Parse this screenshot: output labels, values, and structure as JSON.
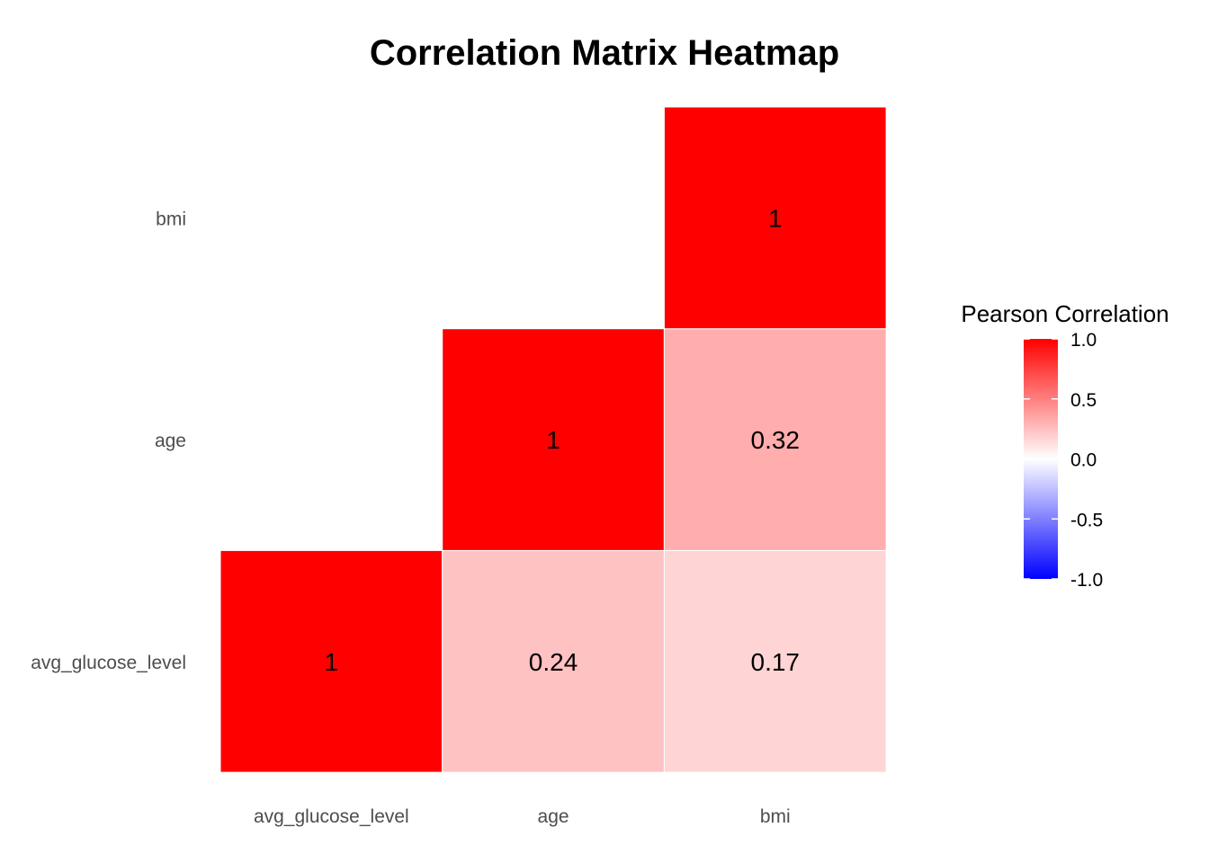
{
  "chart_data": {
    "type": "heatmap",
    "title": "Correlation Matrix Heatmap",
    "variables": [
      "avg_glucose_level",
      "age",
      "bmi"
    ],
    "x_tick_labels": [
      "avg_glucose_level",
      "age",
      "bmi"
    ],
    "y_tick_labels": [
      "avg_glucose_level",
      "age",
      "bmi"
    ],
    "cells": [
      {
        "x": "avg_glucose_level",
        "y": "avg_glucose_level",
        "value": 1,
        "label": "1"
      },
      {
        "x": "age",
        "y": "avg_glucose_level",
        "value": 0.24,
        "label": "0.24"
      },
      {
        "x": "bmi",
        "y": "avg_glucose_level",
        "value": 0.17,
        "label": "0.17"
      },
      {
        "x": "age",
        "y": "age",
        "value": 1,
        "label": "1"
      },
      {
        "x": "bmi",
        "y": "age",
        "value": 0.32,
        "label": "0.32"
      },
      {
        "x": "bmi",
        "y": "bmi",
        "value": 1,
        "label": "1"
      }
    ],
    "legend": {
      "title": "Pearson Correlation",
      "range": [
        -1,
        1
      ],
      "ticks": [
        {
          "value": 1.0,
          "label": "1.0"
        },
        {
          "value": 0.5,
          "label": "0.5"
        },
        {
          "value": 0.0,
          "label": "0.0"
        },
        {
          "value": -0.5,
          "label": "-0.5"
        },
        {
          "value": -1.0,
          "label": "-1.0"
        }
      ],
      "position": "right"
    },
    "colors": {
      "high": "#ff0000",
      "mid": "#ffffff",
      "low": "#0000ff"
    },
    "grid": false
  }
}
